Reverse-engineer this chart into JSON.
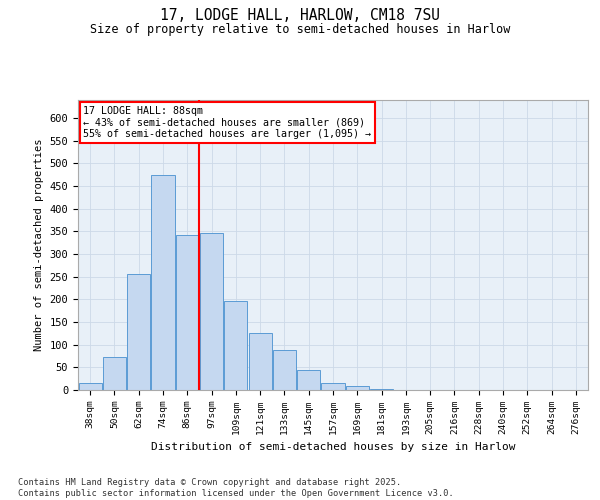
{
  "title1": "17, LODGE HALL, HARLOW, CM18 7SU",
  "title2": "Size of property relative to semi-detached houses in Harlow",
  "xlabel": "Distribution of semi-detached houses by size in Harlow",
  "ylabel": "Number of semi-detached properties",
  "categories": [
    "38sqm",
    "50sqm",
    "62sqm",
    "74sqm",
    "86sqm",
    "97sqm",
    "109sqm",
    "121sqm",
    "133sqm",
    "145sqm",
    "157sqm",
    "169sqm",
    "181sqm",
    "193sqm",
    "205sqm",
    "216sqm",
    "228sqm",
    "240sqm",
    "252sqm",
    "264sqm",
    "276sqm"
  ],
  "values": [
    15,
    73,
    255,
    475,
    343,
    347,
    197,
    125,
    88,
    45,
    15,
    8,
    3,
    1,
    1,
    0,
    0,
    0,
    0,
    0,
    1
  ],
  "bar_color": "#c5d8f0",
  "bar_edge_color": "#5b9bd5",
  "annotation_text": "17 LODGE HALL: 88sqm\n← 43% of semi-detached houses are smaller (869)\n55% of semi-detached houses are larger (1,095) →",
  "ylim": [
    0,
    640
  ],
  "yticks": [
    0,
    50,
    100,
    150,
    200,
    250,
    300,
    350,
    400,
    450,
    500,
    550,
    600
  ],
  "grid_color": "#ccd9e8",
  "background_color": "#e8f0f8",
  "footer_line1": "Contains HM Land Registry data © Crown copyright and database right 2025.",
  "footer_line2": "Contains public sector information licensed under the Open Government Licence v3.0.",
  "line_x_index": 4.5
}
